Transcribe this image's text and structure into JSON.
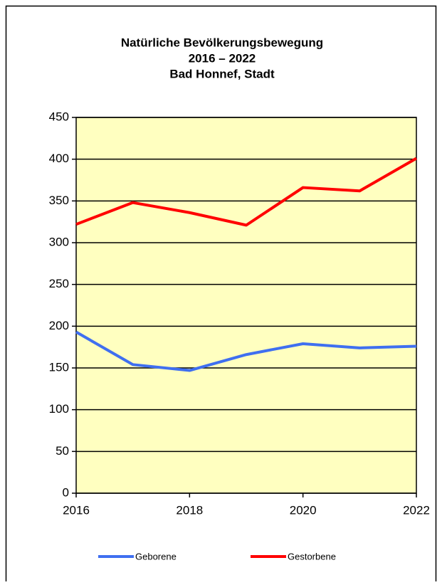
{
  "chart_data": {
    "type": "line",
    "title": [
      "Natürliche Bevölkerungsbewegung",
      "2016 – 2022",
      "Bad Honnef, Stadt"
    ],
    "x": [
      2016,
      2017,
      2018,
      2019,
      2020,
      2021,
      2022
    ],
    "series": [
      {
        "name": "Geborene",
        "color": "#3f6ff0",
        "values": [
          193,
          154,
          147,
          166,
          179,
          174,
          176
        ]
      },
      {
        "name": "Gestorbene",
        "color": "#ff0000",
        "values": [
          322,
          348,
          336,
          321,
          366,
          362,
          401
        ]
      }
    ],
    "xlim": [
      2016,
      2022
    ],
    "xticks": [
      2016,
      2018,
      2020,
      2022
    ],
    "ylim": [
      0,
      450
    ],
    "yticks": [
      0,
      50,
      100,
      150,
      200,
      250,
      300,
      350,
      400,
      450
    ],
    "grid": true,
    "legend": "bottom",
    "plot_background": "#ffffc0"
  }
}
